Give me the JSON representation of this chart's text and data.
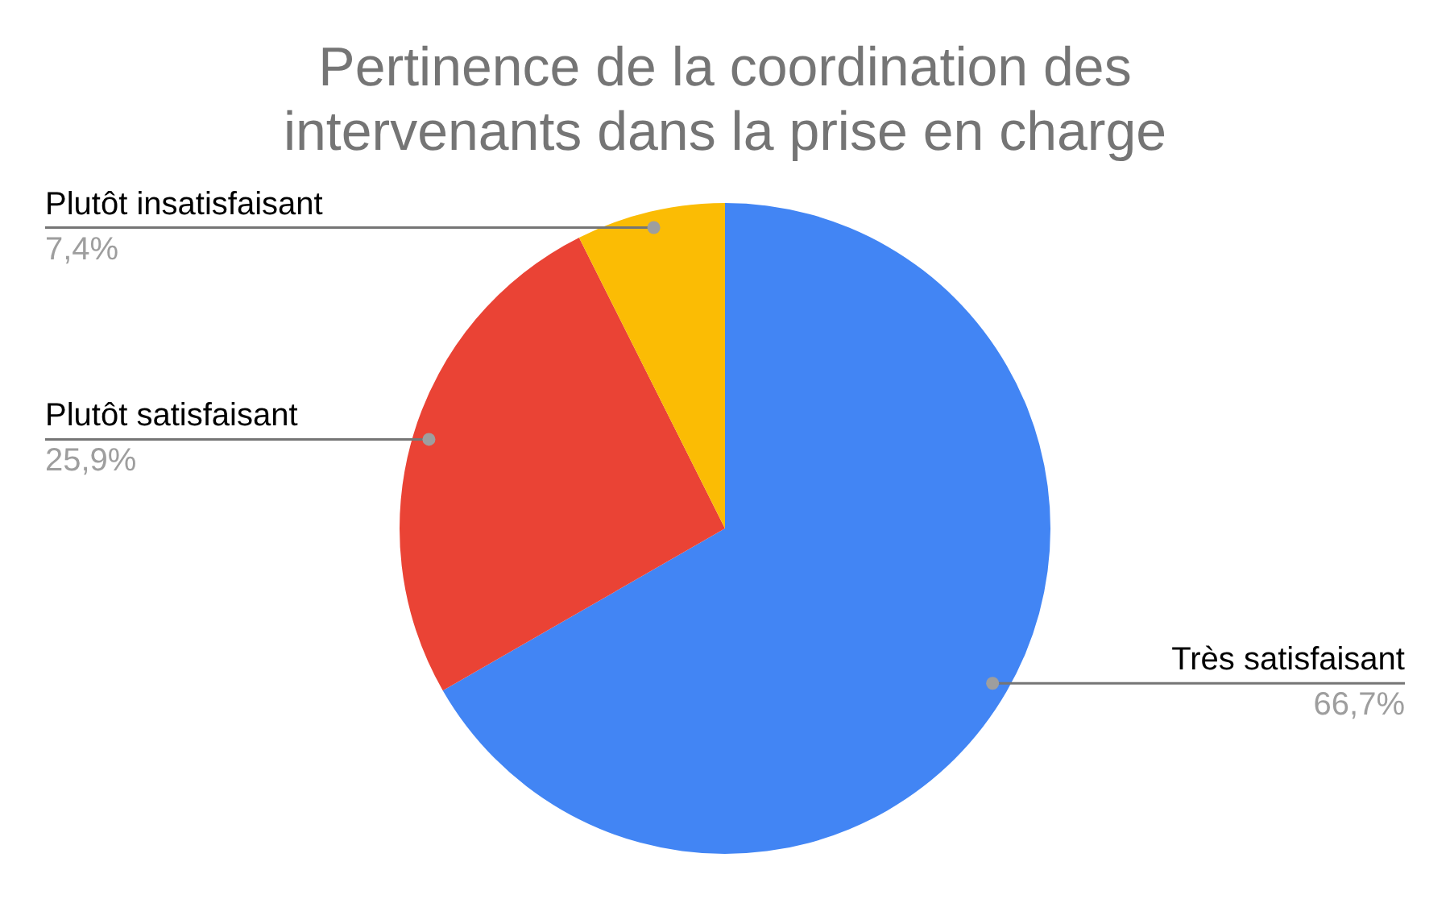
{
  "chart_data": {
    "type": "pie",
    "title": "Pertinence de la coordination des intervenants dans la prise en charge",
    "categories": [
      "Très satisfaisant",
      "Plutôt satisfaisant",
      "Plutôt insatisfaisant"
    ],
    "values": [
      66.7,
      25.9,
      7.4
    ],
    "colors": [
      "#4285f4",
      "#ea4335",
      "#fbbc04"
    ],
    "value_labels": [
      "66,7%",
      "25,9%",
      "7,4%"
    ],
    "legend": false
  }
}
